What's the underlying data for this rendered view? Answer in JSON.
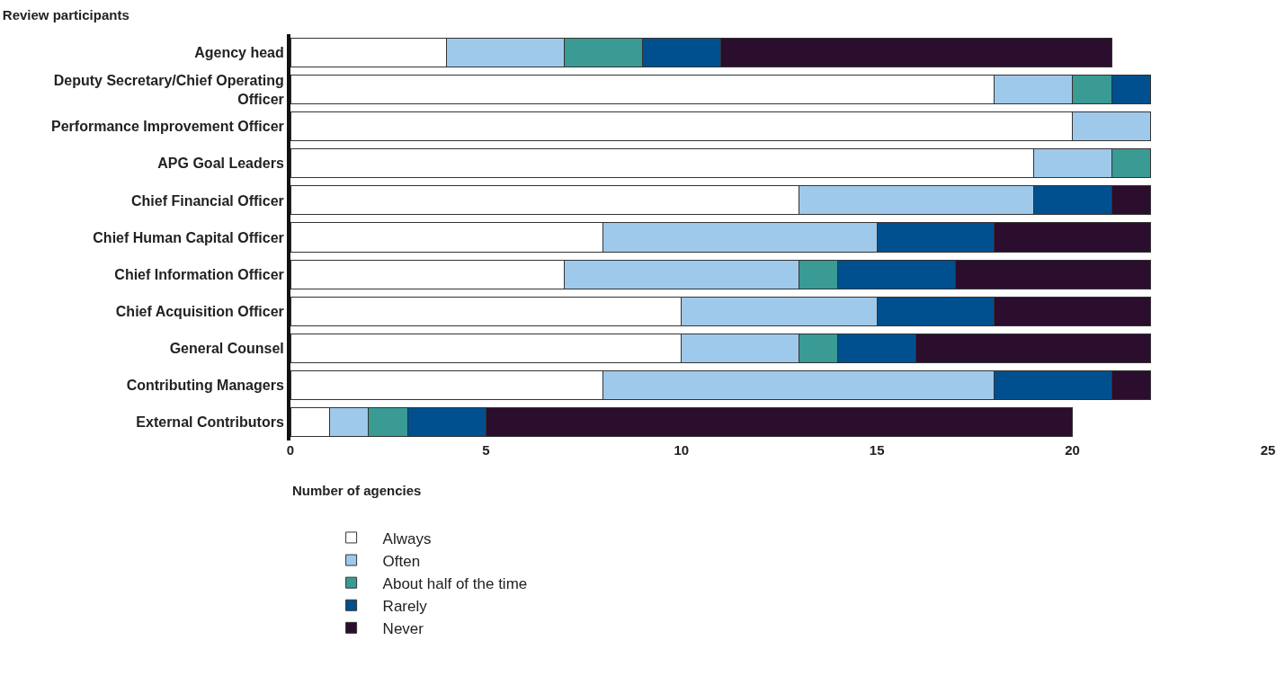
{
  "chart_data": {
    "type": "bar",
    "orientation": "horizontal",
    "stacked": true,
    "title": "Review participants",
    "xlabel": "Number of agencies",
    "categories": [
      "Agency head",
      "Deputy Secretary/Chief Operating Officer",
      "Performance Improvement Officer",
      "APG Goal Leaders",
      "Chief Financial Officer",
      "Chief Human Capital Officer",
      "Chief Information Officer",
      "Chief Acquisition Officer",
      "General Counsel",
      "Contributing Managers",
      "External Contributors"
    ],
    "series": [
      {
        "name": "Always",
        "color": "#ffffff",
        "values": [
          4,
          18,
          20,
          19,
          13,
          8,
          7,
          10,
          10,
          8,
          1
        ]
      },
      {
        "name": "Often",
        "color": "#9fc9ea",
        "values": [
          3,
          2,
          2,
          2,
          6,
          7,
          6,
          5,
          3,
          10,
          1
        ]
      },
      {
        "name": "About half of the time",
        "color": "#3a9a94",
        "values": [
          2,
          1,
          0,
          1,
          0,
          0,
          1,
          0,
          1,
          0,
          1
        ]
      },
      {
        "name": "Rarely",
        "color": "#00508f",
        "values": [
          2,
          1,
          0,
          0,
          2,
          3,
          3,
          3,
          2,
          3,
          2
        ]
      },
      {
        "name": "Never",
        "color": "#2b0d2e",
        "values": [
          10,
          0,
          0,
          0,
          1,
          4,
          5,
          4,
          6,
          1,
          15
        ]
      }
    ],
    "xlim": [
      0,
      25
    ],
    "xticks": [
      0,
      5,
      10,
      15,
      20,
      25
    ],
    "grid": false,
    "legend": "bottom left"
  }
}
